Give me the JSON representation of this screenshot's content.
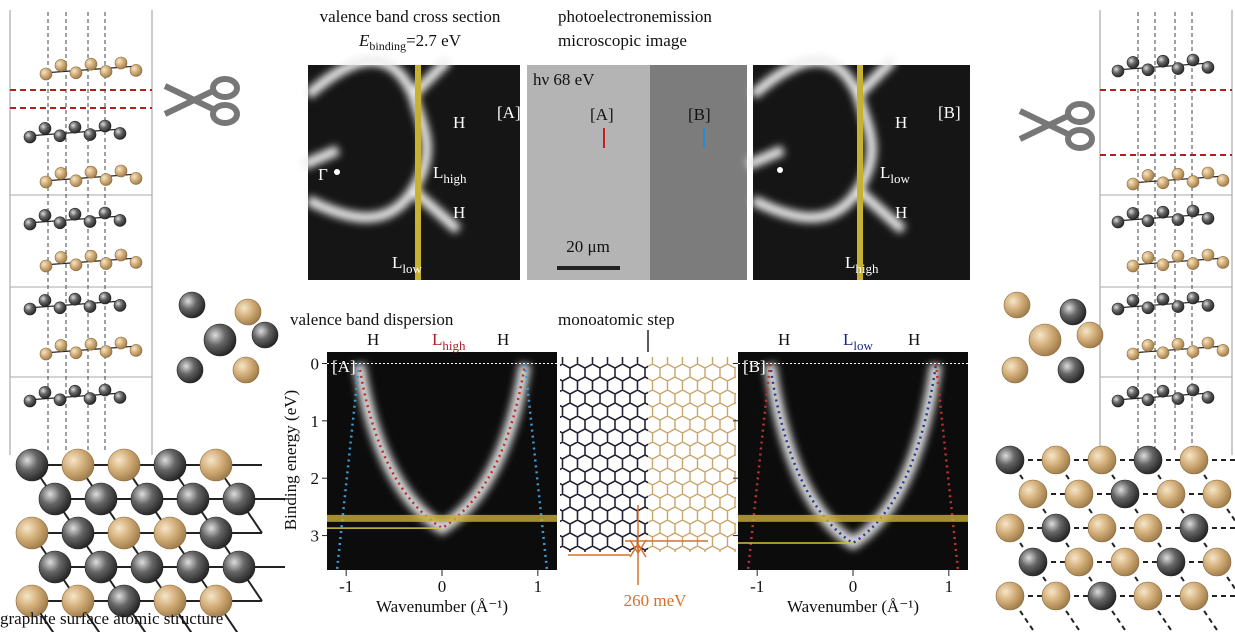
{
  "header": {
    "cross_section_title": "valence band cross section",
    "energy_symbol": "E",
    "energy_subscript": "binding",
    "energy_value": "=2.7 eV",
    "peem_title_1": "photoelectronemission",
    "peem_title_2": "microscopic image"
  },
  "images": {
    "panel_a": {
      "tag": "[A]",
      "gamma": "Γ",
      "labels": [
        {
          "main": "H"
        },
        {
          "main": "L",
          "sub": "high"
        },
        {
          "main": "H"
        },
        {
          "main": "L",
          "sub": "low"
        }
      ]
    },
    "peem": {
      "photon_energy": "hν 68 eV",
      "marker_a": "[A]",
      "marker_b": "[B]",
      "scale_bar": "20 μm"
    },
    "panel_b": {
      "tag": "[B]",
      "labels": [
        {
          "main": "H"
        },
        {
          "main": "L",
          "sub": "low"
        },
        {
          "main": "H"
        },
        {
          "main": "L",
          "sub": "high"
        }
      ]
    }
  },
  "dispersion": {
    "title": "valence band dispersion",
    "step_label": "monoatomic step",
    "energy_difference": "260 meV",
    "y_label": "Binding energy (eV)",
    "x_label": "Wavenumber (Å⁻¹)",
    "cross_section_energy": 2.7,
    "xlim": [
      -1.2,
      1.2
    ],
    "ylim": [
      -0.2,
      3.6
    ],
    "y_inverted": true,
    "xticks": [
      -1,
      0,
      1
    ],
    "yticks": [
      0,
      1,
      2,
      3
    ],
    "plots": [
      {
        "tag": "[A]",
        "top": [
          {
            "main": "H"
          },
          {
            "main": "L",
            "sub": "high",
            "color": "#b0202a"
          },
          {
            "main": "H"
          }
        ],
        "band_bottom": 2.87
      },
      {
        "tag": "[B]",
        "top": [
          {
            "main": "H"
          },
          {
            "main": "L",
            "sub": "low",
            "color": "#1a2a80"
          },
          {
            "main": "H"
          }
        ],
        "band_bottom": 3.13
      }
    ]
  },
  "footer": {
    "caption": "graphite surface atomic structure"
  }
}
